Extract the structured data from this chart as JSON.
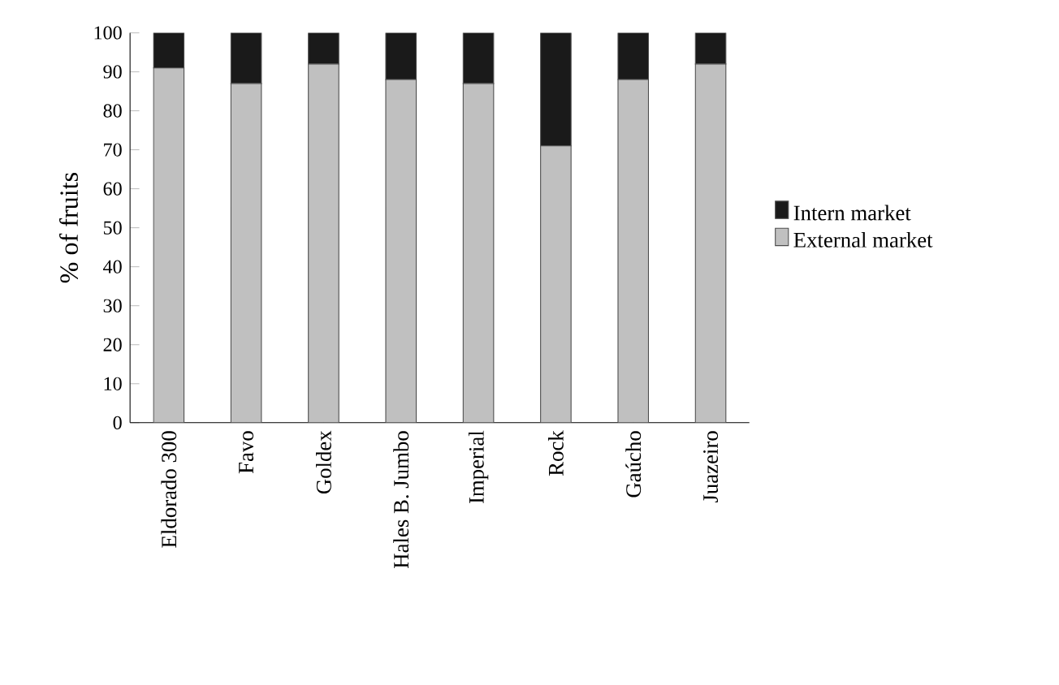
{
  "chart_data": {
    "type": "bar",
    "stacked": true,
    "ylabel": "% of fruits",
    "categories": [
      "Eldorado 300",
      "Favo",
      "Goldex",
      "Hales B. Jumbo",
      "Imperial",
      "Rock",
      "Gaúcho",
      "Juazeiro"
    ],
    "series": [
      {
        "name": "External market",
        "color": "#c0c0c0",
        "values": [
          91,
          87,
          92,
          88,
          87,
          71,
          88,
          92
        ]
      },
      {
        "name": "Intern market",
        "color": "#1a1a1a",
        "values": [
          9,
          13,
          8,
          12,
          13,
          29,
          12,
          8
        ]
      }
    ],
    "ylim": [
      0,
      100
    ],
    "yticks": [
      0,
      10,
      20,
      30,
      40,
      50,
      60,
      70,
      80,
      90,
      100
    ],
    "legend": "right",
    "grid": false
  }
}
